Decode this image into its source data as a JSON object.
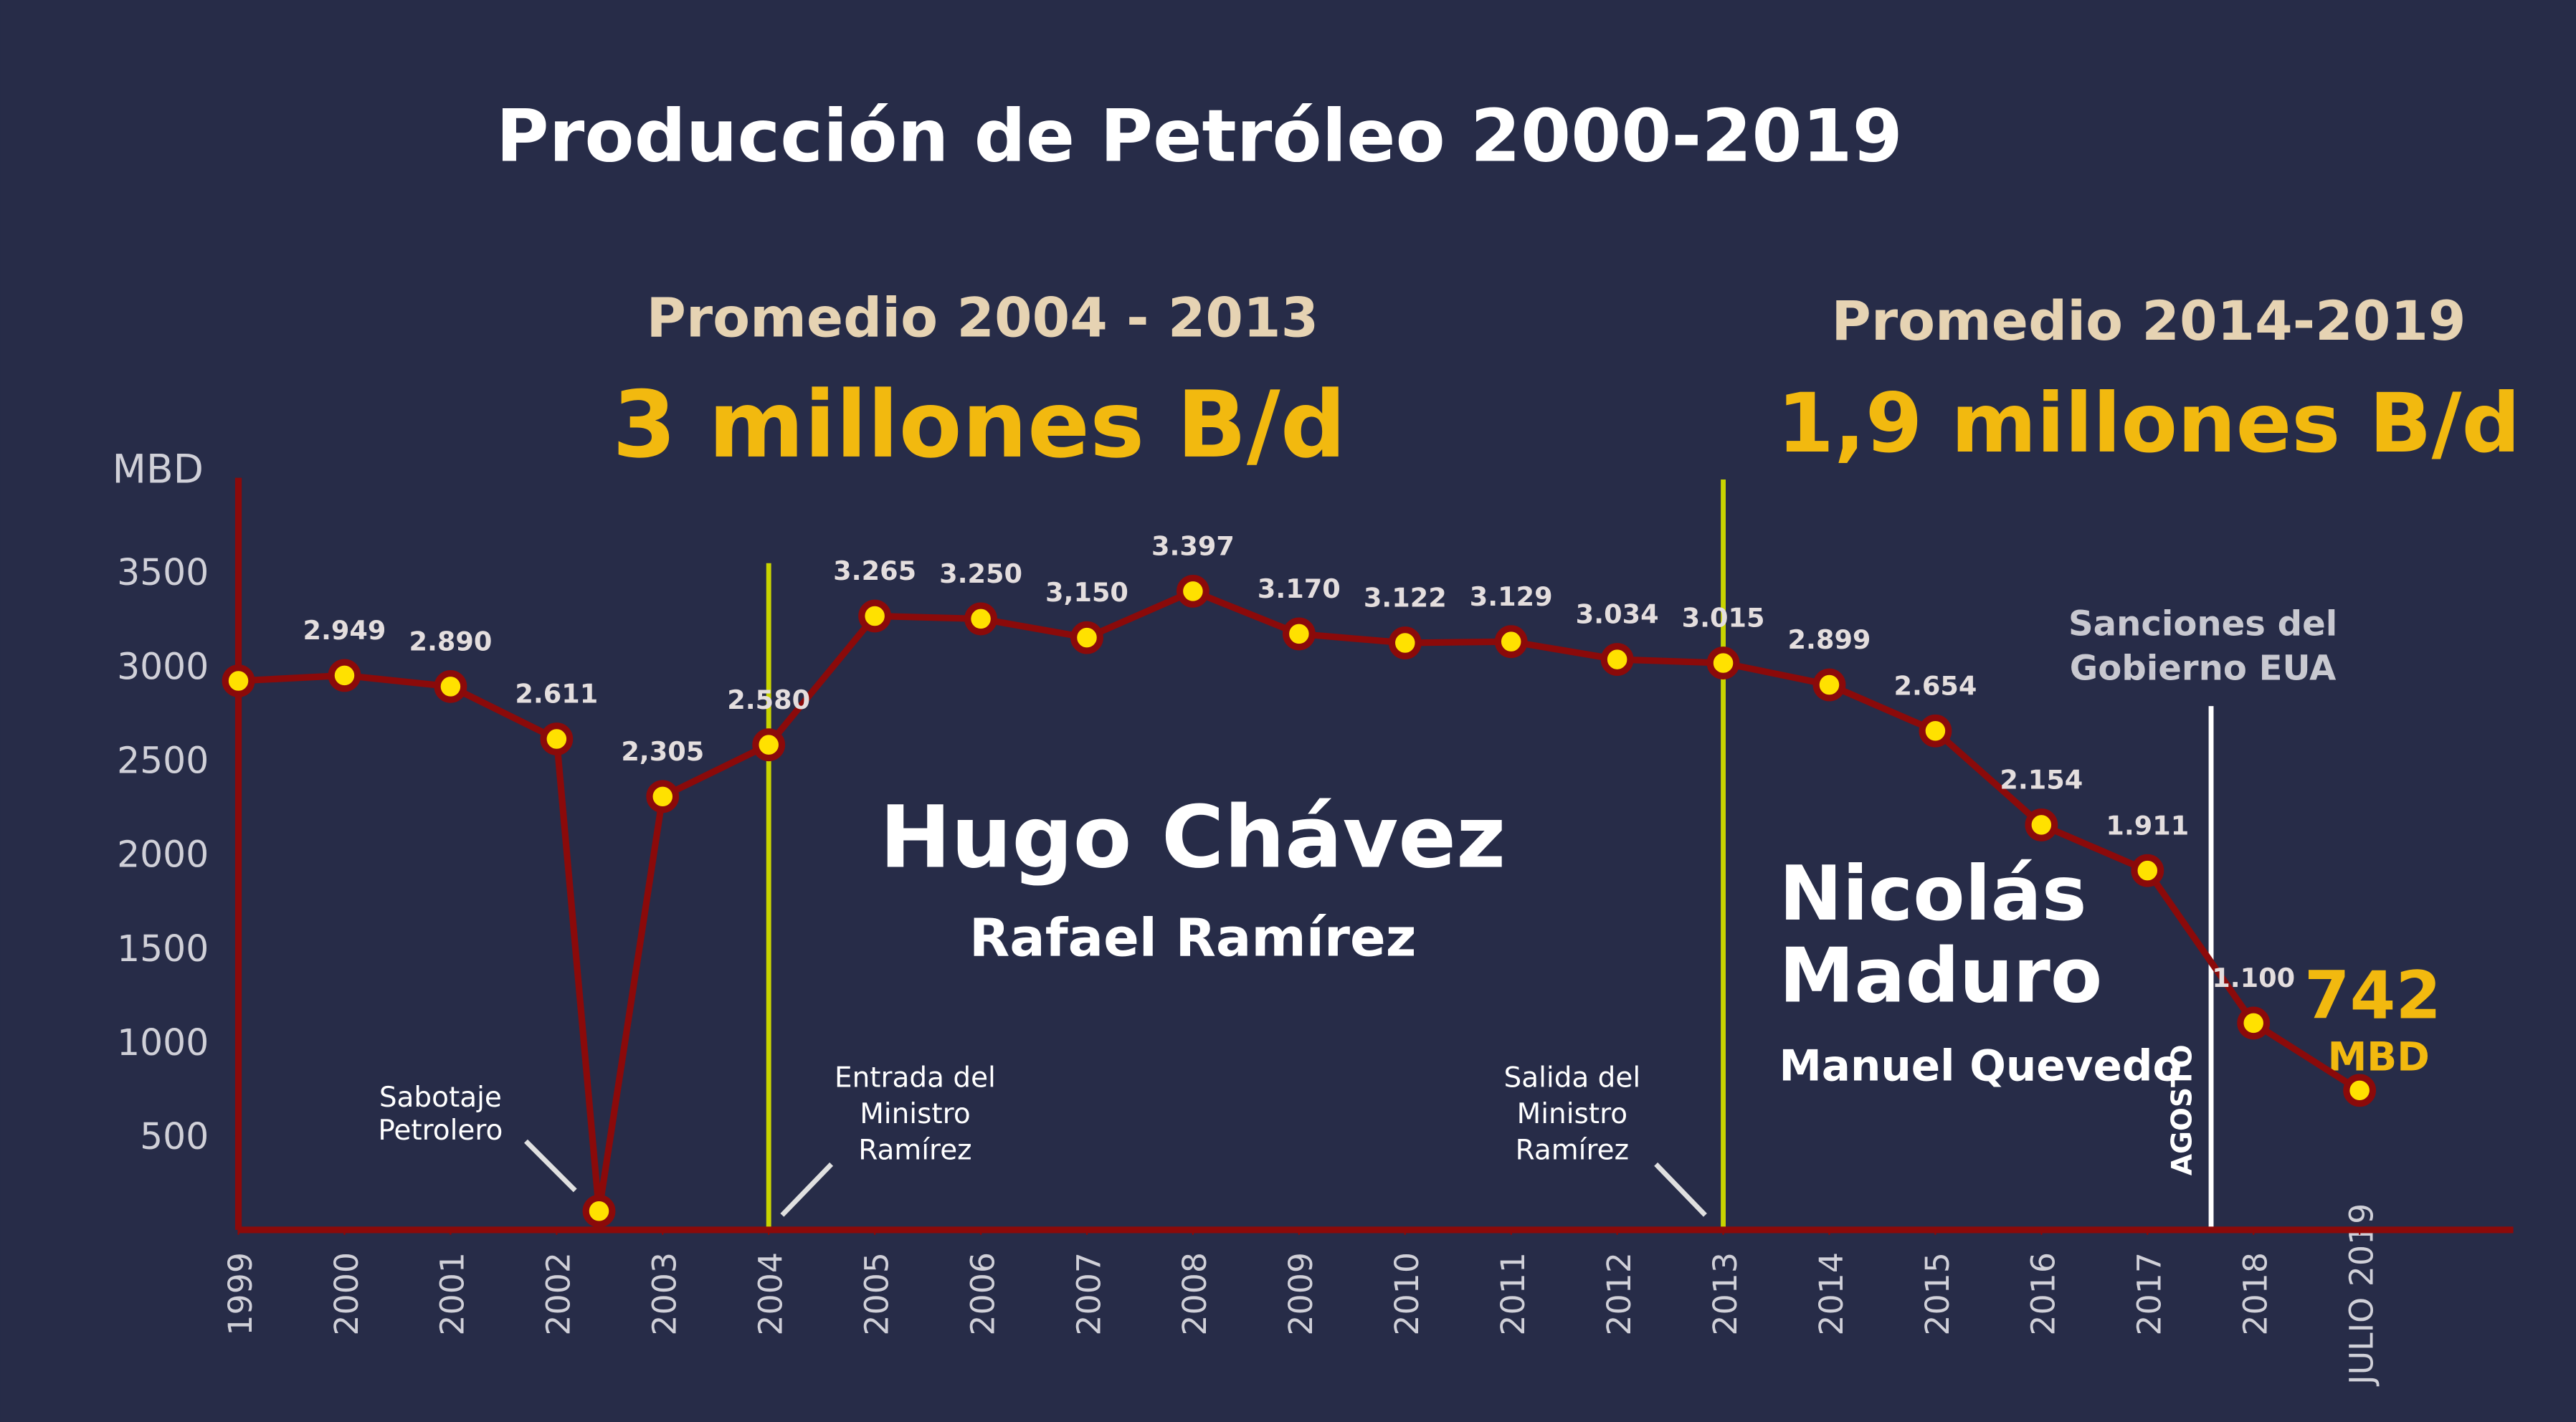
{
  "chart_data": {
    "type": "line",
    "title": "Producción de Petróleo 2000-2019",
    "y_label": "MBD",
    "x": [
      1999,
      2000,
      2001,
      2002,
      2002.4,
      2003,
      2004,
      2005,
      2006,
      2007,
      2008,
      2009,
      2010,
      2011,
      2012,
      2013,
      2014,
      2015,
      2016,
      2017,
      2018,
      2019
    ],
    "series": [
      {
        "name": null,
        "color": "#8b0a0a",
        "marker_color": "#ffe100",
        "values": [
          2920,
          2949,
          2890,
          2611,
          100,
          2305,
          2580,
          3265,
          3250,
          3150,
          3397,
          3170,
          3122,
          3129,
          3034,
          3015,
          2899,
          2654,
          2154,
          1911,
          1100,
          742
        ],
        "value_labels": [
          null,
          "2.949",
          "2.890",
          "2.611",
          null,
          "2,305",
          "2.580",
          "3.265",
          "3.250",
          "3,150",
          "3.397",
          "3.170",
          "3.122",
          "3.129",
          "3.034",
          "3.015",
          "2.899",
          "2.654",
          "2.154",
          "1.911",
          "1.100",
          "742"
        ]
      }
    ],
    "xlim": [
      1999,
      2020.5
    ],
    "xticks": [
      1999,
      2000,
      2001,
      2002,
      2003,
      2004,
      2005,
      2006,
      2007,
      2008,
      2009,
      2010,
      2011,
      2012,
      2013,
      2014,
      2015,
      2016,
      2017,
      2018,
      {
        "value": 2019,
        "label": "JULIO 2019"
      }
    ],
    "ylim": [
      0,
      4000
    ],
    "yticks": [
      500,
      1000,
      1500,
      2000,
      2500,
      3000,
      3500
    ],
    "vlines": [
      {
        "x": 2004,
        "color": "#c8d400"
      },
      {
        "x": 2013,
        "color": "#c8d400"
      },
      {
        "x": 2017.6,
        "color": "#ffffff"
      }
    ],
    "annotations": {
      "avg1": [
        "Promedio 2004 - 2013",
        "3 millones B/d"
      ],
      "avg2": [
        "Promedio 2014-2019",
        "1,9 millones B/d"
      ],
      "chavez": [
        "Hugo Chávez",
        "Rafael Ramírez"
      ],
      "maduro": [
        "Nicolás",
        "Maduro",
        "Manuel Quevedo"
      ],
      "sabotaje": [
        "Sabotaje",
        "Petrolero"
      ],
      "entrada": [
        "Entrada del",
        "Ministro",
        "Ramírez"
      ],
      "salida": [
        "Salida del",
        "Ministro",
        "Ramírez"
      ],
      "sanciones": [
        "Sanciones del",
        "Gobierno EUA"
      ],
      "agosto": "AGOSTO",
      "unit_last": "MBD"
    }
  }
}
